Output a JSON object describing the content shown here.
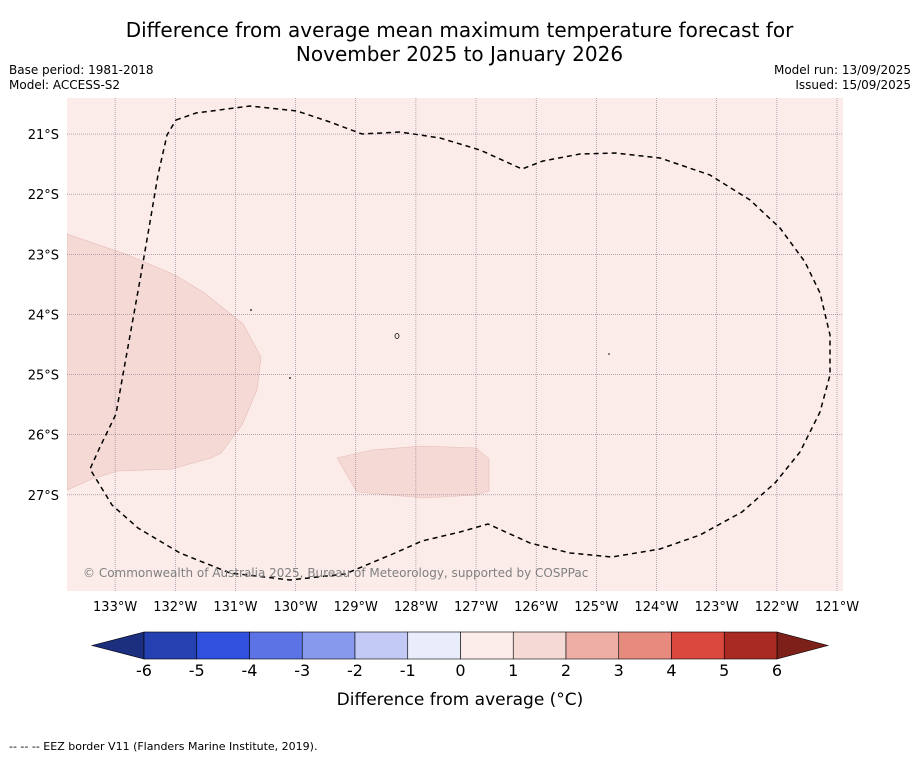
{
  "title": {
    "line1": "Difference from average mean maximum temperature forecast for",
    "line2": "November 2025 to January 2026"
  },
  "meta_left": {
    "base_period": "Base period: 1981-2018",
    "model": "Model: ACCESS-S2"
  },
  "meta_right": {
    "model_run": "Model run: 13/09/2025",
    "issued": "Issued: 15/09/2025"
  },
  "map": {
    "lon_range": [
      -133.8,
      -120.9
    ],
    "lat_range": [
      -28.6,
      -20.4
    ],
    "background_color": "#fbecea",
    "anomaly_1_2_color": "#f4d9d5",
    "lat_ticks": [
      {
        "lat": -21,
        "label": "21°S"
      },
      {
        "lat": -22,
        "label": "22°S"
      },
      {
        "lat": -23,
        "label": "23°S"
      },
      {
        "lat": -24,
        "label": "24°S"
      },
      {
        "lat": -25,
        "label": "25°S"
      },
      {
        "lat": -26,
        "label": "26°S"
      },
      {
        "lat": -27,
        "label": "27°S"
      }
    ],
    "lon_ticks": [
      {
        "lon": -133,
        "label": "133°W"
      },
      {
        "lon": -132,
        "label": "132°W"
      },
      {
        "lon": -131,
        "label": "131°W"
      },
      {
        "lon": -130,
        "label": "130°W"
      },
      {
        "lon": -129,
        "label": "129°W"
      },
      {
        "lon": -128,
        "label": "128°W"
      },
      {
        "lon": -127,
        "label": "127°W"
      },
      {
        "lon": -126,
        "label": "126°W"
      },
      {
        "lon": -125,
        "label": "125°W"
      },
      {
        "lon": -124,
        "label": "124°W"
      },
      {
        "lon": -123,
        "label": "123°W"
      },
      {
        "lon": -122,
        "label": "122°W"
      },
      {
        "lon": -121,
        "label": "121°W"
      }
    ],
    "copyright": "© Commonwealth of Australia 2025, Bureau of Meteorology, supported by COSPPac"
  },
  "colorbar": {
    "ticks": [
      "-6",
      "-5",
      "-4",
      "-3",
      "-2",
      "-1",
      "0",
      "1",
      "2",
      "3",
      "4",
      "5",
      "6"
    ],
    "colors": [
      "#2540b0",
      "#2f51dd",
      "#5b73e4",
      "#8799ec",
      "#c2c9f5",
      "#e9ecfb",
      "#fbecea",
      "#f4d9d5",
      "#eeaea6",
      "#e88b7f",
      "#d9473d",
      "#a82a22"
    ],
    "under_color": "#1c2e7e",
    "over_color": "#7d2019",
    "label": "Difference from average (°C)"
  },
  "footer": "--  --  -- EEZ border V11 (Flanders Marine Institute, 2019)."
}
